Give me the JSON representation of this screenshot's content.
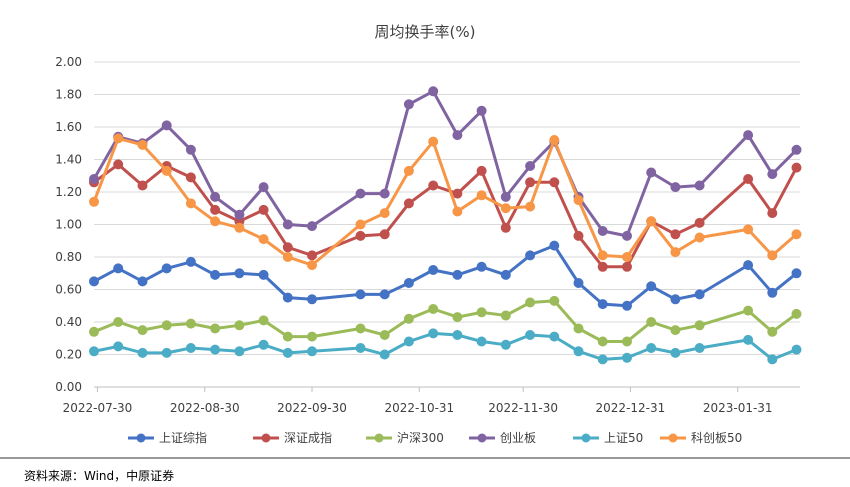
{
  "chart_data": {
    "type": "line",
    "title": "周均换手率(%)",
    "xlabel": "",
    "ylabel": "",
    "ylim": [
      0,
      2.0
    ],
    "yticks": [
      "0.00",
      "0.20",
      "0.40",
      "0.60",
      "0.80",
      "1.00",
      "1.20",
      "1.40",
      "1.60",
      "1.80",
      "2.00"
    ],
    "x_tick_labels": [
      "2022-07-30",
      "2022-08-30",
      "2022-09-30",
      "2022-10-31",
      "2022-11-30",
      "2022-12-31",
      "2023-01-31"
    ],
    "x_range": [
      "2022-07-29",
      "2023-02-18"
    ],
    "grid": "horizontal",
    "legend_position": "bottom",
    "dates": [
      "2022-07-29",
      "2022-08-05",
      "2022-08-12",
      "2022-08-19",
      "2022-08-26",
      "2022-09-02",
      "2022-09-09",
      "2022-09-16",
      "2022-09-23",
      "2022-09-30",
      "2022-10-14",
      "2022-10-21",
      "2022-10-28",
      "2022-11-04",
      "2022-11-11",
      "2022-11-18",
      "2022-11-25",
      "2022-12-02",
      "2022-12-09",
      "2022-12-16",
      "2022-12-23",
      "2022-12-30",
      "2023-01-06",
      "2023-01-13",
      "2023-01-20",
      "2023-02-03",
      "2023-02-10",
      "2023-02-17"
    ],
    "series": [
      {
        "name": "上证综指",
        "color": "#4472C4",
        "values": [
          0.65,
          0.73,
          0.65,
          0.73,
          0.77,
          0.69,
          0.7,
          0.69,
          0.55,
          0.54,
          0.57,
          0.57,
          0.64,
          0.72,
          0.69,
          0.74,
          0.69,
          0.81,
          0.87,
          0.64,
          0.51,
          0.5,
          0.62,
          0.54,
          0.57,
          0.75,
          0.58,
          0.7
        ]
      },
      {
        "name": "深证成指",
        "color": "#C0504D",
        "values": [
          1.26,
          1.37,
          1.24,
          1.36,
          1.29,
          1.09,
          1.02,
          1.09,
          0.86,
          0.81,
          0.93,
          0.94,
          1.13,
          1.24,
          1.19,
          1.33,
          0.98,
          1.26,
          1.26,
          0.93,
          0.74,
          0.74,
          1.02,
          0.94,
          1.01,
          1.28,
          1.07,
          1.35
        ]
      },
      {
        "name": "沪深300",
        "color": "#9BBB59",
        "values": [
          0.34,
          0.4,
          0.35,
          0.38,
          0.39,
          0.36,
          0.38,
          0.41,
          0.31,
          0.31,
          0.36,
          0.32,
          0.42,
          0.48,
          0.43,
          0.46,
          0.44,
          0.52,
          0.53,
          0.36,
          0.28,
          0.28,
          0.4,
          0.35,
          0.38,
          0.47,
          0.34,
          0.45
        ]
      },
      {
        "name": "创业板",
        "color": "#8064A2",
        "values": [
          1.28,
          1.54,
          1.5,
          1.61,
          1.46,
          1.17,
          1.06,
          1.23,
          1.0,
          0.99,
          1.19,
          1.19,
          1.74,
          1.82,
          1.55,
          1.7,
          1.17,
          1.36,
          1.51,
          1.17,
          0.96,
          0.93,
          1.32,
          1.23,
          1.24,
          1.55,
          1.31,
          1.46
        ]
      },
      {
        "name": "上证50",
        "color": "#4BACC6",
        "values": [
          0.22,
          0.25,
          0.21,
          0.21,
          0.24,
          0.23,
          0.22,
          0.26,
          0.21,
          0.22,
          0.24,
          0.2,
          0.28,
          0.33,
          0.32,
          0.28,
          0.26,
          0.32,
          0.31,
          0.22,
          0.17,
          0.18,
          0.24,
          0.21,
          0.24,
          0.29,
          0.17,
          0.23
        ]
      },
      {
        "name": "科创板50",
        "color": "#F79646",
        "values": [
          1.14,
          1.53,
          1.49,
          1.33,
          1.13,
          1.02,
          0.98,
          0.91,
          0.8,
          0.75,
          1.0,
          1.07,
          1.33,
          1.51,
          1.08,
          1.18,
          1.1,
          1.11,
          1.52,
          1.15,
          0.81,
          0.8,
          1.02,
          0.83,
          0.92,
          0.97,
          0.81,
          0.94
        ]
      }
    ]
  },
  "source": "资料来源：Wind，中原证券"
}
